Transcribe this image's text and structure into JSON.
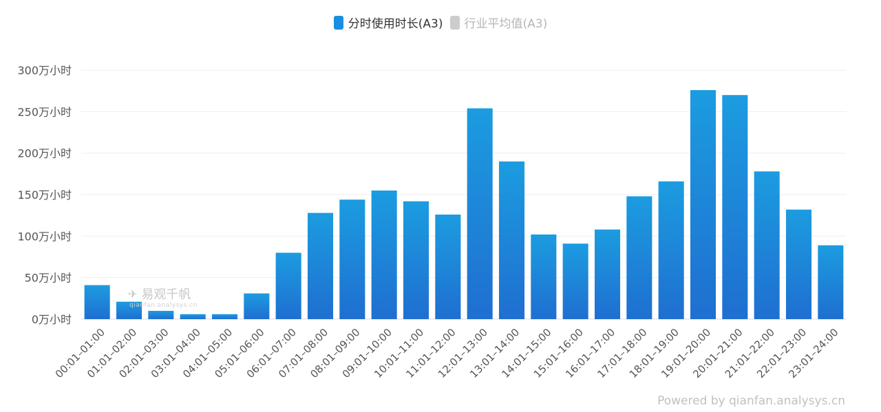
{
  "legend": {
    "active_label": "分时使用时长(A3)",
    "inactive_label": "行业平均值(A3)",
    "active_color": "#1a8ee0",
    "inactive_color": "#cccccc"
  },
  "watermark": {
    "brand": "易观千帆",
    "url": "qianfan.analysys.cn"
  },
  "footer": {
    "credit": "Powered by qianfan.analysys.cn"
  },
  "colors": {
    "bar_top": "#1c9ce0",
    "bar_bottom": "#1f6fd0",
    "grid": "#eeeeee",
    "axis_text": "#555555"
  },
  "chart_data": {
    "type": "bar",
    "categories": [
      "00:01–01:00",
      "01:01–02:00",
      "02:01–03:00",
      "03:01–04:00",
      "04:01–05:00",
      "05:01–06:00",
      "06:01–07:00",
      "07:01–08:00",
      "08:01–09:00",
      "09:01–10:00",
      "10:01–11:00",
      "11:01–12:00",
      "12:01–13:00",
      "13:01–14:00",
      "14:01–15:00",
      "15:01–16:00",
      "16:01–17:00",
      "17:01–18:00",
      "18:01–19:00",
      "19:01–20:00",
      "20:01–21:00",
      "21:01–22:00",
      "22:01–23:00",
      "23:01–24:00"
    ],
    "series": [
      {
        "name": "分时使用时长(A3)",
        "values": [
          41,
          21,
          10,
          6,
          6,
          31,
          80,
          128,
          144,
          155,
          142,
          126,
          254,
          190,
          102,
          91,
          108,
          148,
          166,
          276,
          270,
          178,
          132,
          89
        ]
      }
    ],
    "ylim": [
      0,
      300
    ],
    "yticks": [
      0,
      50,
      100,
      150,
      200,
      250,
      300
    ],
    "ytick_labels": [
      "0万小时",
      "50万小时",
      "100万小时",
      "150万小时",
      "200万小时",
      "250万小时",
      "300万小时"
    ],
    "grid": true,
    "legend_position": "top-center"
  }
}
